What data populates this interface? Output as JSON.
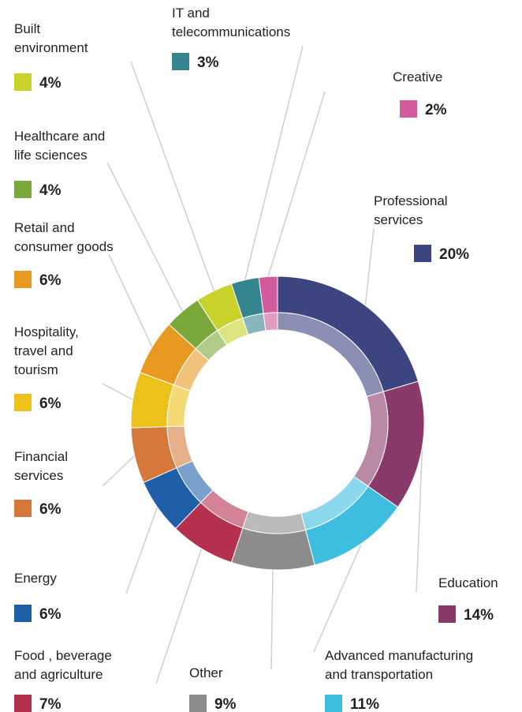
{
  "chart_data": {
    "type": "donut",
    "categories": [
      "Professional services",
      "Education",
      "Advanced manufacturing and transportation",
      "Other",
      "Food , beverage and agriculture",
      "Energy",
      "Financial services",
      "Hospitality, travel and tourism",
      "Retail and consumer goods",
      "Healthcare and life sciences",
      "Built environment",
      "IT and telecommunications",
      "Creative"
    ],
    "values": [
      20,
      14,
      11,
      9,
      7,
      6,
      6,
      6,
      6,
      4,
      4,
      3,
      2
    ],
    "value_labels": [
      "20%",
      "14%",
      "11%",
      "9%",
      "7%",
      "6%",
      "6%",
      "6%",
      "6%",
      "4%",
      "4%",
      "3%",
      "2%"
    ],
    "colors": [
      "#3c4580",
      "#8a3a6a",
      "#3dbde0",
      "#8c8c8c",
      "#b5304e",
      "#1f5fa8",
      "#d6783a",
      "#ecc21a",
      "#e89a20",
      "#7ba83a",
      "#c8d22a",
      "#358590",
      "#d35a9b"
    ]
  }
}
